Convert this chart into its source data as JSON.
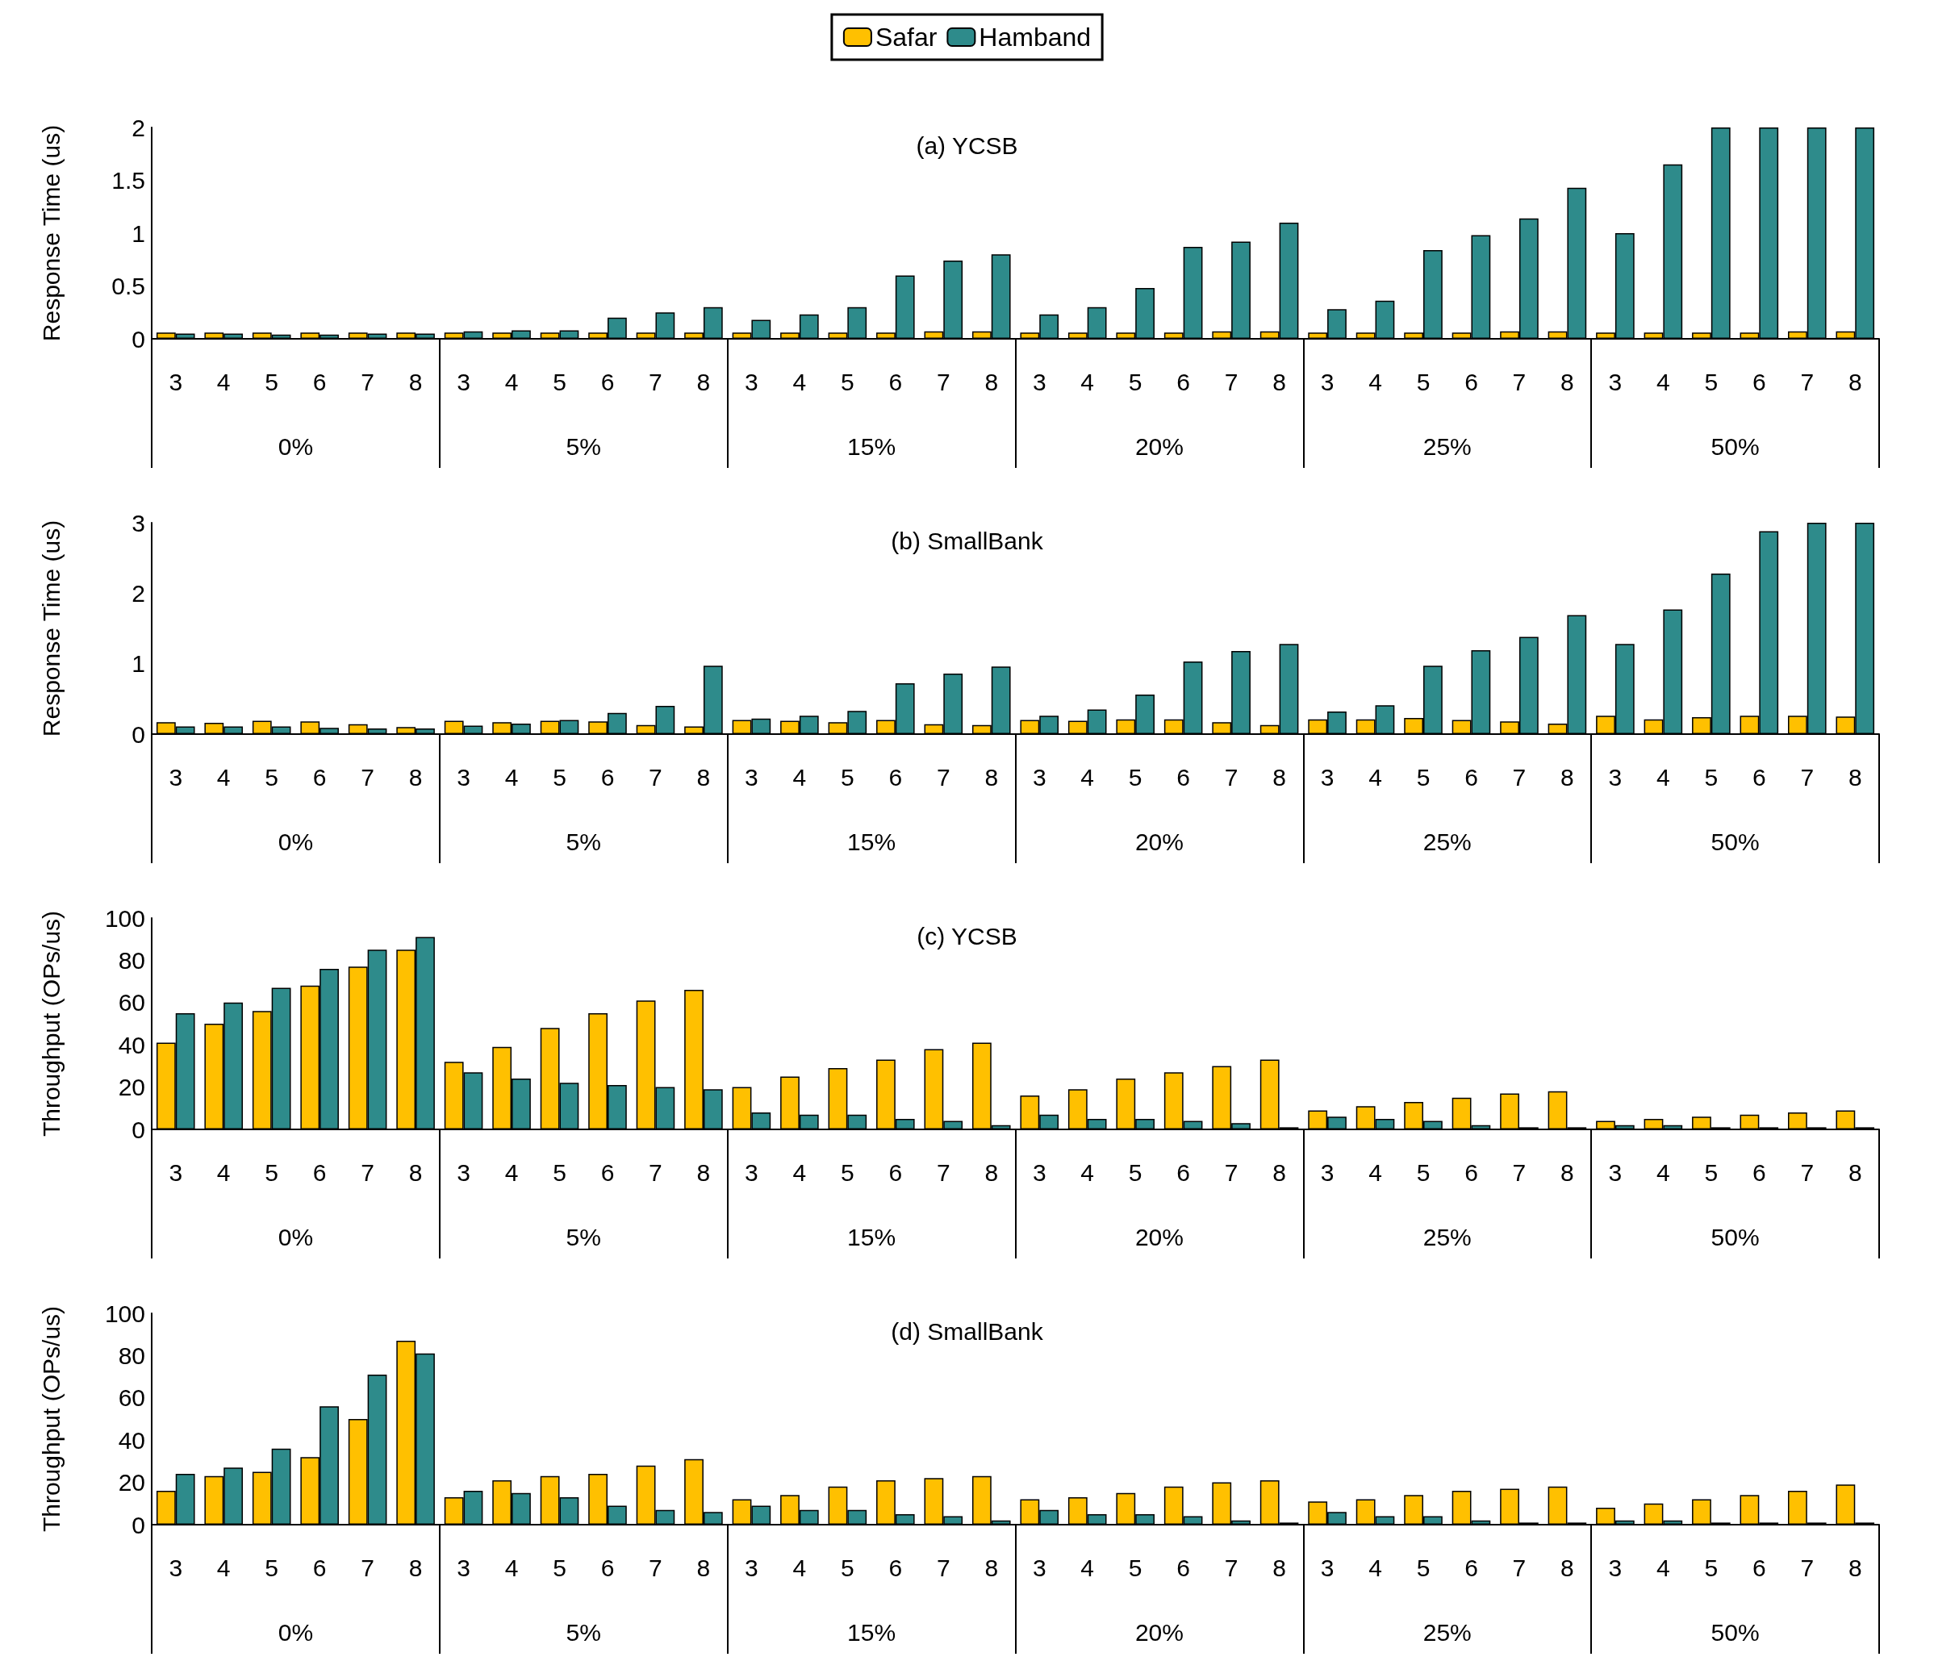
{
  "chart_data": [
    {
      "type": "bar",
      "title": "(a) YCSB",
      "ylabel": "Response Time (us)",
      "legend": "top",
      "ylim": [
        0,
        2
      ],
      "yticks": [
        0,
        0.5,
        1,
        1.5,
        2
      ],
      "grid": false,
      "categories": [
        "3",
        "4",
        "5",
        "6",
        "7",
        "8",
        "3",
        "4",
        "5",
        "6",
        "7",
        "8",
        "3",
        "4",
        "5",
        "6",
        "7",
        "8",
        "3",
        "4",
        "5",
        "6",
        "7",
        "8",
        "3",
        "4",
        "5",
        "6",
        "7",
        "8",
        "3",
        "4",
        "5",
        "6",
        "7",
        "8"
      ],
      "annotations": [
        "0%",
        "5%",
        "15%",
        "20%",
        "25%",
        "50%"
      ],
      "series": [
        {
          "name": "Safar",
          "color": "#ffc000",
          "values": [
            0.06,
            0.06,
            0.06,
            0.06,
            0.06,
            0.06,
            0.06,
            0.06,
            0.06,
            0.06,
            0.06,
            0.06,
            0.06,
            0.06,
            0.06,
            0.06,
            0.07,
            0.07,
            0.06,
            0.06,
            0.06,
            0.06,
            0.07,
            0.07,
            0.06,
            0.06,
            0.06,
            0.06,
            0.07,
            0.07,
            0.06,
            0.06,
            0.06,
            0.06,
            0.07,
            0.07
          ]
        },
        {
          "name": "Hamband",
          "color": "#2e8b8b",
          "values": [
            0.05,
            0.05,
            0.04,
            0.04,
            0.05,
            0.05,
            0.07,
            0.08,
            0.08,
            0.2,
            0.25,
            0.3,
            0.18,
            0.23,
            0.3,
            0.6,
            0.74,
            0.8,
            0.23,
            0.3,
            0.48,
            0.87,
            0.92,
            1.1,
            0.28,
            0.36,
            0.84,
            0.98,
            1.14,
            1.43,
            1.0,
            1.65,
            2,
            2,
            2,
            2
          ]
        }
      ]
    },
    {
      "type": "bar",
      "title": "(b) SmallBank",
      "ylabel": "Response Time (us)",
      "ylim": [
        0,
        3
      ],
      "yticks": [
        0,
        1,
        2,
        3
      ],
      "grid": false,
      "categories": [
        "3",
        "4",
        "5",
        "6",
        "7",
        "8",
        "3",
        "4",
        "5",
        "6",
        "7",
        "8",
        "3",
        "4",
        "5",
        "6",
        "7",
        "8",
        "3",
        "4",
        "5",
        "6",
        "7",
        "8",
        "3",
        "4",
        "5",
        "6",
        "7",
        "8",
        "3",
        "4",
        "5",
        "6",
        "7",
        "8"
      ],
      "annotations": [
        "0%",
        "5%",
        "15%",
        "20%",
        "25%",
        "50%"
      ],
      "series": [
        {
          "color": "#ffc000",
          "values": [
            0.17,
            0.16,
            0.19,
            0.18,
            0.14,
            0.1,
            0.19,
            0.17,
            0.19,
            0.18,
            0.13,
            0.11,
            0.2,
            0.19,
            0.17,
            0.2,
            0.14,
            0.13,
            0.2,
            0.19,
            0.21,
            0.21,
            0.17,
            0.13,
            0.21,
            0.21,
            0.23,
            0.2,
            0.18,
            0.15,
            0.26,
            0.21,
            0.24,
            0.26,
            0.26,
            0.25
          ]
        },
        {
          "color": "#2e8b8b",
          "values": [
            0.11,
            0.11,
            0.11,
            0.09,
            0.08,
            0.08,
            0.12,
            0.15,
            0.2,
            0.3,
            0.4,
            0.97,
            0.22,
            0.26,
            0.33,
            0.72,
            0.86,
            0.96,
            0.26,
            0.35,
            0.56,
            1.03,
            1.18,
            1.28,
            0.32,
            0.41,
            0.97,
            1.19,
            1.38,
            1.69,
            1.28,
            1.77,
            2.28,
            2.88,
            3,
            3
          ]
        }
      ]
    },
    {
      "type": "bar",
      "title": "(c) YCSB",
      "ylabel": "Throughput (OPs/us)",
      "ylim": [
        0,
        100
      ],
      "yticks": [
        0,
        20,
        40,
        60,
        80,
        100
      ],
      "grid": false,
      "categories": [
        "3",
        "4",
        "5",
        "6",
        "7",
        "8",
        "3",
        "4",
        "5",
        "6",
        "7",
        "8",
        "3",
        "4",
        "5",
        "6",
        "7",
        "8",
        "3",
        "4",
        "5",
        "6",
        "7",
        "8",
        "3",
        "4",
        "5",
        "6",
        "7",
        "8",
        "3",
        "4",
        "5",
        "6",
        "7",
        "8"
      ],
      "annotations": [
        "0%",
        "5%",
        "15%",
        "20%",
        "25%",
        "50%"
      ],
      "series": [
        {
          "color": "#ffc000",
          "values": [
            41,
            50,
            56,
            68,
            77,
            85,
            32,
            39,
            48,
            55,
            61,
            66,
            20,
            25,
            29,
            33,
            38,
            41,
            16,
            19,
            24,
            27,
            30,
            33,
            9,
            11,
            13,
            15,
            17,
            18,
            4,
            5,
            6,
            7,
            8,
            9
          ]
        },
        {
          "color": "#2e8b8b",
          "values": [
            55,
            60,
            67,
            76,
            85,
            91,
            27,
            24,
            22,
            21,
            20,
            19,
            8,
            7,
            7,
            5,
            4,
            2,
            7,
            5,
            5,
            4,
            3,
            1,
            6,
            5,
            4,
            2,
            1,
            1,
            2,
            2,
            1,
            1,
            1,
            1
          ]
        }
      ]
    },
    {
      "type": "bar",
      "title": "(d) SmallBank",
      "ylabel": "Throughput (OPs/us)",
      "ylim": [
        0,
        100
      ],
      "yticks": [
        0,
        20,
        40,
        60,
        80,
        100
      ],
      "grid": false,
      "categories": [
        "3",
        "4",
        "5",
        "6",
        "7",
        "8",
        "3",
        "4",
        "5",
        "6",
        "7",
        "8",
        "3",
        "4",
        "5",
        "6",
        "7",
        "8",
        "3",
        "4",
        "5",
        "6",
        "7",
        "8",
        "3",
        "4",
        "5",
        "6",
        "7",
        "8",
        "3",
        "4",
        "5",
        "6",
        "7",
        "8"
      ],
      "annotations": [
        "0%",
        "5%",
        "15%",
        "20%",
        "25%",
        "50%"
      ],
      "series": [
        {
          "color": "#ffc000",
          "values": [
            16,
            23,
            25,
            32,
            50,
            87,
            13,
            21,
            23,
            24,
            28,
            31,
            12,
            14,
            18,
            21,
            22,
            23,
            12,
            13,
            15,
            18,
            20,
            21,
            11,
            12,
            14,
            16,
            17,
            18,
            8,
            10,
            12,
            14,
            16,
            19
          ]
        },
        {
          "color": "#2e8b8b",
          "values": [
            24,
            27,
            36,
            56,
            71,
            81,
            16,
            15,
            13,
            9,
            7,
            6,
            9,
            7,
            7,
            5,
            4,
            2,
            7,
            5,
            5,
            4,
            2,
            1,
            6,
            4,
            4,
            2,
            1,
            1,
            2,
            2,
            1,
            1,
            1,
            1
          ]
        }
      ]
    }
  ]
}
